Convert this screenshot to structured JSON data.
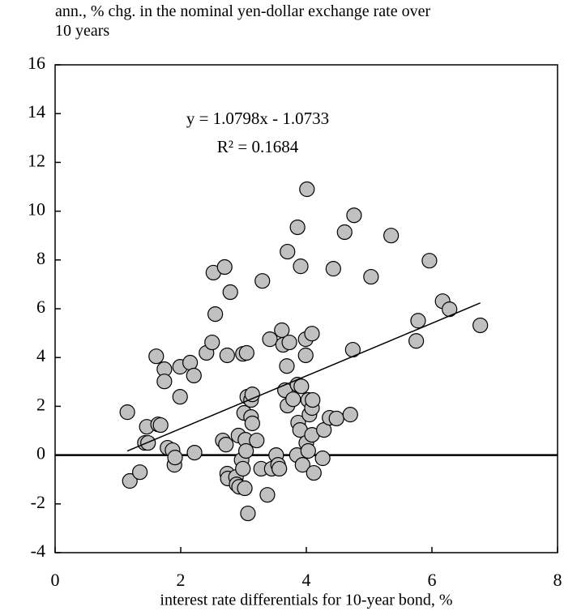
{
  "chart_data": {
    "type": "scatter",
    "title": "ann., % chg. in the nominal yen-dollar exchange rate over 10 years",
    "x_label": "interest rate differentials for 10-year bond, %",
    "annotations": [
      "y = 1.0798x - 1.0733",
      "R² = 0.1684"
    ],
    "trendline": {
      "slope": 1.0798,
      "intercept": -1.0733
    },
    "xlim": [
      0,
      8
    ],
    "xticks": [
      0,
      2,
      4,
      6,
      8
    ],
    "ylim": [
      -4,
      16
    ],
    "yticks": [
      -4,
      -2,
      0,
      2,
      4,
      6,
      8,
      10,
      12,
      14,
      16
    ],
    "grid": false,
    "marker_color": "#c0c0c0",
    "x": [
      1.15,
      1.19,
      1.35,
      1.43,
      1.46,
      1.48,
      1.61,
      1.64,
      1.68,
      1.74,
      1.74,
      1.79,
      1.87,
      1.9,
      1.91,
      1.99,
      1.99,
      2.15,
      2.21,
      2.22,
      2.41,
      2.5,
      2.52,
      2.55,
      2.67,
      2.7,
      2.72,
      2.74,
      2.74,
      2.75,
      2.79,
      2.88,
      2.89,
      2.92,
      2.93,
      2.97,
      2.99,
      3.01,
      3.03,
      3.04,
      2.99,
      3.02,
      3.05,
      3.06,
      3.07,
      3.12,
      3.12,
      3.14,
      3.14,
      3.21,
      3.28,
      3.3,
      3.38,
      3.42,
      3.45,
      3.52,
      3.55,
      3.57,
      3.61,
      3.63,
      3.66,
      3.69,
      3.7,
      3.7,
      3.73,
      3.79,
      3.85,
      3.86,
      3.86,
      3.87,
      3.9,
      3.91,
      3.92,
      3.94,
      3.99,
      3.99,
      4.0,
      4.01,
      4.03,
      4.03,
      4.05,
      4.09,
      4.09,
      4.09,
      4.12,
      4.1,
      4.26,
      4.28,
      4.37,
      4.43,
      4.48,
      4.61,
      4.7,
      4.74,
      4.76,
      5.03,
      5.35,
      5.75,
      5.78,
      5.96,
      6.17,
      6.28,
      6.77
    ],
    "values": [
      1.76,
      -1.06,
      -0.7,
      0.5,
      1.16,
      0.5,
      4.05,
      1.26,
      1.23,
      3.52,
      3.02,
      0.3,
      0.2,
      -0.4,
      -0.1,
      3.62,
      2.39,
      3.79,
      3.26,
      0.1,
      4.19,
      4.62,
      7.48,
      5.78,
      0.6,
      7.71,
      0.43,
      4.09,
      -0.76,
      -0.96,
      6.68,
      -0.9,
      -1.2,
      0.8,
      -1.3,
      -0.2,
      4.15,
      1.73,
      0.63,
      0.17,
      -0.56,
      -1.36,
      4.19,
      2.39,
      -2.39,
      2.26,
      1.56,
      1.3,
      2.49,
      0.6,
      -0.56,
      7.14,
      -1.63,
      4.75,
      -0.56,
      0.0,
      -0.4,
      -0.56,
      5.12,
      4.52,
      2.66,
      3.65,
      2.03,
      8.34,
      4.62,
      2.29,
      0.0,
      9.34,
      2.89,
      1.33,
      1.03,
      7.74,
      2.82,
      -0.4,
      4.75,
      4.09,
      0.5,
      10.9,
      2.26,
      0.17,
      1.66,
      4.98,
      1.93,
      0.83,
      -0.73,
      2.26,
      -0.13,
      1.03,
      1.53,
      7.64,
      1.5,
      9.14,
      1.66,
      4.32,
      9.83,
      7.31,
      9.0,
      4.68,
      5.51,
      7.97,
      6.31,
      5.98,
      5.32
    ]
  }
}
